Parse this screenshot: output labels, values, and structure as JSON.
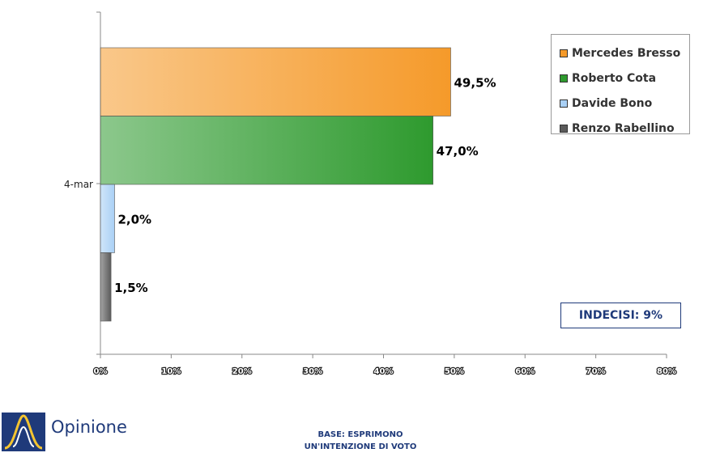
{
  "chart_data": {
    "type": "bar",
    "orientation": "horizontal",
    "categories": [
      "4-mar"
    ],
    "series": [
      {
        "name": "Mercedes Bresso",
        "values": [
          49.5
        ],
        "label": "49,5%",
        "color": "#f59a2a"
      },
      {
        "name": "Roberto Cota",
        "values": [
          47.0
        ],
        "label": "47,0%",
        "color": "#2e9a2e"
      },
      {
        "name": "Davide Bono",
        "values": [
          2.0
        ],
        "label": "2,0%",
        "color": "#a9d0f5"
      },
      {
        "name": "Renzo Rabellino",
        "values": [
          1.5
        ],
        "label": "1,5%",
        "color": "#5a5a5a"
      }
    ],
    "xlim": [
      0,
      80
    ],
    "xticks": [
      0,
      10,
      20,
      30,
      40,
      50,
      60,
      70,
      80
    ],
    "xtick_labels": [
      "0%",
      "10%",
      "20%",
      "30%",
      "40%",
      "50%",
      "60%",
      "70%",
      "80%"
    ],
    "grid": false,
    "legend_position": "top-right",
    "annotation": "INDECISI: 9%"
  },
  "logo": {
    "text": "Opinione"
  },
  "footer": {
    "line1": "BASE: ESPRIMONO",
    "line2": "UN'INTENZIONE DI VOTO"
  }
}
